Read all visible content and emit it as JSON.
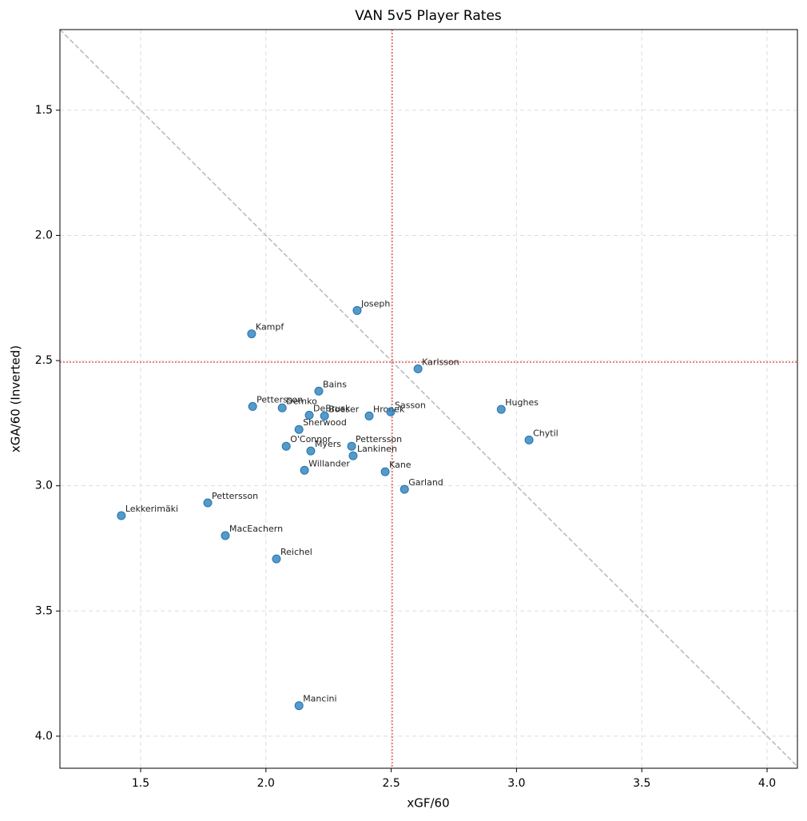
{
  "chart_data": {
    "type": "scatter",
    "title": "VAN 5v5 Player Rates",
    "x_label": "xGF/60",
    "y_label": "xGA/60 (Inverted)",
    "labels": [
      "Joseph",
      "Kampf",
      "Karlsson",
      "Bains",
      "Pettersson",
      "Demko",
      "DeBrusk",
      "Boeser",
      "Hronek",
      "Sasson",
      "Hughes",
      "Chytil",
      "Sherwood",
      "O'Connor",
      "Myers",
      "Pettersson",
      "Lankinen",
      "Kane",
      "Willander",
      "Garland",
      "Pettersson",
      "Lekkerimäki",
      "MacEachern",
      "Reichel",
      "Mancini"
    ],
    "x": [
      2.364,
      1.943,
      2.607,
      2.211,
      1.947,
      2.065,
      2.173,
      2.234,
      2.412,
      2.498,
      2.939,
      3.05,
      2.132,
      2.081,
      2.179,
      2.342,
      2.348,
      2.476,
      2.154,
      2.553,
      1.768,
      1.423,
      1.838,
      2.042,
      2.132
    ],
    "y": [
      2.3,
      2.393,
      2.533,
      2.622,
      2.683,
      2.689,
      2.718,
      2.721,
      2.721,
      2.705,
      2.695,
      2.817,
      2.775,
      2.842,
      2.861,
      2.842,
      2.88,
      2.944,
      2.938,
      3.014,
      3.068,
      3.119,
      3.199,
      3.292,
      3.878
    ],
    "color": "#1f77b4",
    "xlim": [
      1.178,
      4.121
    ],
    "ylim": [
      4.128,
      1.178
    ],
    "xticks": [
      1.5,
      {
        "value": 2,
        "label": "2.0"
      },
      2.5,
      {
        "value": 3,
        "label": "3.0"
      },
      3.5,
      {
        "value": 4,
        "label": "4.0"
      }
    ],
    "yticks": [
      1.5,
      {
        "value": 2,
        "label": "2.0"
      },
      2.5,
      {
        "value": 3,
        "label": "3.0"
      },
      3.5,
      {
        "value": 4,
        "label": "4.0"
      }
    ],
    "grid": true,
    "diagonal": true,
    "vlines": [
      2.504
    ],
    "hlines": [
      2.506
    ]
  }
}
